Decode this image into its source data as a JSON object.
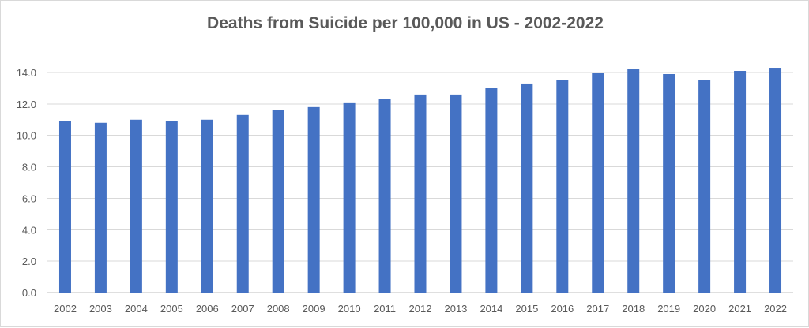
{
  "chart_data": {
    "type": "bar",
    "title": "Deaths from Suicide per 100,000 in US - 2002-2022",
    "xlabel": "",
    "ylabel": "",
    "categories": [
      "2002",
      "2003",
      "2004",
      "2005",
      "2006",
      "2007",
      "2008",
      "2009",
      "2010",
      "2011",
      "2012",
      "2013",
      "2014",
      "2015",
      "2016",
      "2017",
      "2018",
      "2019",
      "2020",
      "2021",
      "2022"
    ],
    "values": [
      10.9,
      10.8,
      11.0,
      10.9,
      11.0,
      11.3,
      11.6,
      11.8,
      12.1,
      12.3,
      12.6,
      12.6,
      13.0,
      13.3,
      13.5,
      14.0,
      14.2,
      13.9,
      13.5,
      14.1,
      14.3
    ],
    "ylim": [
      0,
      14
    ],
    "y_ticks": [
      0,
      2,
      4,
      6,
      8,
      10,
      12,
      14
    ],
    "y_tick_decimals": 1,
    "grid": true,
    "legend": "none",
    "colors": {
      "bar": "#4472c4",
      "grid": "#d9d9d9",
      "axis": "#bfbfbf",
      "text": "#595959"
    }
  }
}
